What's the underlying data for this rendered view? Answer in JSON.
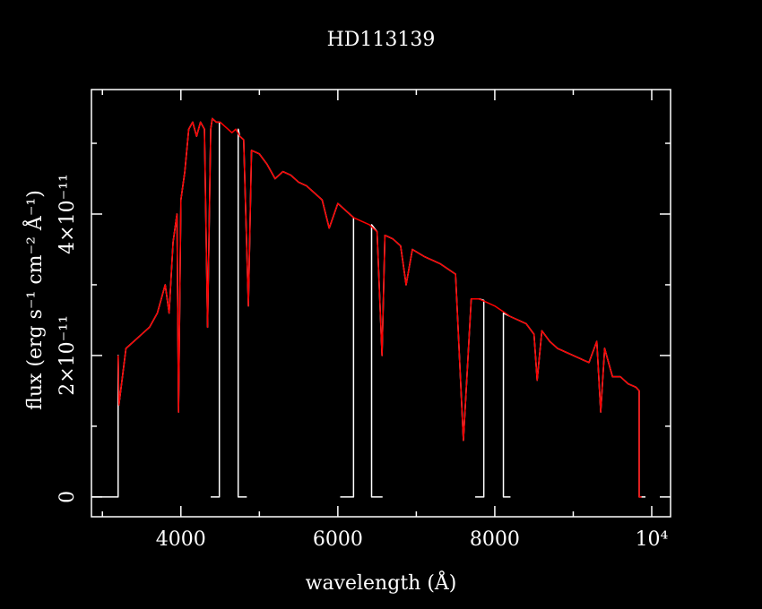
{
  "chart_data": {
    "type": "line",
    "title": "HD113139",
    "x_label": "wavelength (Å)",
    "y_label": "flux (erg s⁻¹ cm⁻² Å⁻¹)",
    "xlim": [
      2860,
      10240
    ],
    "ylim": [
      -2.8e-12,
      5.76e-11
    ],
    "xticks": [
      4000,
      6000,
      8000,
      {
        "value": 10000,
        "label": "10⁴"
      }
    ],
    "xminorticks": [
      3000,
      5000,
      7000,
      9000
    ],
    "yticks": [
      0,
      {
        "value": 2e-11,
        "label": "2×10⁻¹¹"
      },
      {
        "value": 4e-11,
        "label": "4×10⁻¹¹"
      }
    ],
    "yminorticks": [
      1e-11,
      3e-11,
      5e-11
    ],
    "series": [
      {
        "color": "#ffffff",
        "x": [
          2870,
          3200,
          3200,
          3210,
          3300,
          3400,
          3500,
          3600,
          3700,
          3800,
          3850,
          3900,
          3950,
          3970,
          4000,
          4050,
          4100,
          4150,
          4200,
          4250,
          4300,
          4340,
          4380,
          4400,
          4450,
          4490,
          4490,
          4380,
          null,
          4840,
          4730,
          4730,
          4750,
          4800,
          4860,
          4900,
          5000,
          5100,
          5200,
          5300,
          5400,
          5500,
          5600,
          5700,
          5800,
          5890,
          6000,
          6100,
          6200,
          6200,
          6030,
          null,
          6570,
          6430,
          6430,
          6500,
          6563,
          6600,
          6700,
          6800,
          6870,
          6950,
          7100,
          7300,
          7500,
          7600,
          7700,
          7800,
          7860,
          7860,
          7750,
          null,
          8200,
          8110,
          8110,
          8200,
          8400,
          8500,
          8540,
          8600,
          8700,
          8800,
          9000,
          9200,
          9300,
          9350,
          9400,
          9500,
          9600,
          9700,
          9800,
          9840,
          9840,
          9920
        ],
        "values": [
          0,
          0,
          2e-11,
          1.3e-11,
          2.1e-11,
          2.2e-11,
          2.3e-11,
          2.4e-11,
          2.6e-11,
          3e-11,
          2.6e-11,
          3.6e-11,
          4e-11,
          1.2e-11,
          4.2e-11,
          4.6e-11,
          5.2e-11,
          5.3e-11,
          5.1e-11,
          5.3e-11,
          5.2e-11,
          2.4e-11,
          5.2e-11,
          5.35e-11,
          5.3e-11,
          5.3e-11,
          0,
          0,
          null,
          0,
          0,
          5.2e-11,
          5.1e-11,
          5.05e-11,
          2.7e-11,
          4.9e-11,
          4.85e-11,
          4.7e-11,
          4.5e-11,
          4.6e-11,
          4.55e-11,
          4.45e-11,
          4.4e-11,
          4.3e-11,
          4.2e-11,
          3.8e-11,
          4.15e-11,
          4.05e-11,
          3.95e-11,
          0,
          0,
          null,
          0,
          0,
          3.85e-11,
          3.75e-11,
          2e-11,
          3.7e-11,
          3.65e-11,
          3.55e-11,
          3e-11,
          3.5e-11,
          3.4e-11,
          3.3e-11,
          3.15e-11,
          8e-12,
          2.8e-11,
          2.8e-11,
          2.78e-11,
          0,
          0,
          null,
          0,
          0,
          2.6e-11,
          2.55e-11,
          2.45e-11,
          2.3e-11,
          1.65e-11,
          2.35e-11,
          2.2e-11,
          2.1e-11,
          2e-11,
          1.9e-11,
          2.2e-11,
          1.2e-11,
          2.1e-11,
          1.7e-11,
          1.7e-11,
          1.6e-11,
          1.55e-11,
          1.5e-11,
          0,
          0
        ]
      },
      {
        "color": "#ff0000",
        "x": [
          3200,
          3210,
          3300,
          3400,
          3500,
          3600,
          3700,
          3800,
          3850,
          3900,
          3950,
          3970,
          4000,
          4050,
          4100,
          4150,
          4200,
          4250,
          4300,
          4340,
          4380,
          4400,
          4450,
          4500,
          4550,
          4600,
          4650,
          4700,
          4750,
          4800,
          4860,
          4900,
          5000,
          5100,
          5200,
          5300,
          5400,
          5500,
          5600,
          5700,
          5800,
          5890,
          6000,
          6100,
          6200,
          6300,
          6400,
          6500,
          6563,
          6600,
          6700,
          6800,
          6870,
          6950,
          7100,
          7300,
          7500,
          7600,
          7700,
          7800,
          7900,
          8000,
          8200,
          8400,
          8500,
          8540,
          8600,
          8700,
          8800,
          9000,
          9200,
          9300,
          9350,
          9400,
          9500,
          9600,
          9700,
          9800,
          9840,
          9840,
          9870
        ],
        "values": [
          2e-11,
          1.3e-11,
          2.1e-11,
          2.2e-11,
          2.3e-11,
          2.4e-11,
          2.6e-11,
          3e-11,
          2.6e-11,
          3.6e-11,
          4e-11,
          1.2e-11,
          4.2e-11,
          4.6e-11,
          5.2e-11,
          5.3e-11,
          5.1e-11,
          5.3e-11,
          5.2e-11,
          2.4e-11,
          5.2e-11,
          5.35e-11,
          5.3e-11,
          5.3e-11,
          5.25e-11,
          5.2e-11,
          5.15e-11,
          5.2e-11,
          5.1e-11,
          5.05e-11,
          2.7e-11,
          4.9e-11,
          4.85e-11,
          4.7e-11,
          4.5e-11,
          4.6e-11,
          4.55e-11,
          4.45e-11,
          4.4e-11,
          4.3e-11,
          4.2e-11,
          3.8e-11,
          4.15e-11,
          4.05e-11,
          3.95e-11,
          3.9e-11,
          3.85e-11,
          3.75e-11,
          2e-11,
          3.7e-11,
          3.65e-11,
          3.55e-11,
          3e-11,
          3.5e-11,
          3.4e-11,
          3.3e-11,
          3.15e-11,
          8e-12,
          2.8e-11,
          2.8e-11,
          2.75e-11,
          2.7e-11,
          2.55e-11,
          2.45e-11,
          2.3e-11,
          1.65e-11,
          2.35e-11,
          2.2e-11,
          2.1e-11,
          2e-11,
          1.9e-11,
          2.2e-11,
          1.2e-11,
          2.1e-11,
          1.7e-11,
          1.7e-11,
          1.6e-11,
          1.55e-11,
          1.5e-11,
          0,
          0
        ]
      }
    ]
  }
}
